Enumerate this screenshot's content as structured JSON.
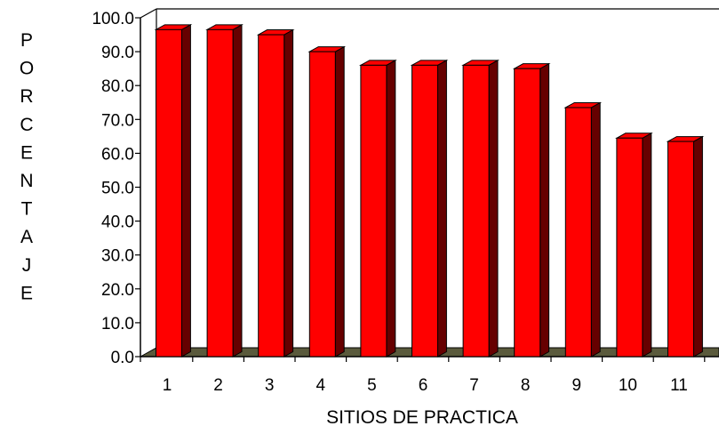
{
  "chart_data": {
    "type": "bar",
    "title": "",
    "xlabel": "SITIOS DE PRACTICA",
    "ylabel": "PORCENTAJE",
    "categories": [
      "1",
      "2",
      "3",
      "4",
      "5",
      "6",
      "7",
      "8",
      "9",
      "10",
      "11"
    ],
    "values": [
      96.5,
      96.5,
      95.0,
      90.0,
      86.0,
      86.0,
      86.0,
      85.0,
      73.5,
      64.5,
      63.5
    ],
    "ylim": [
      0,
      100
    ],
    "yticks": [
      "0.0",
      "10.0",
      "20.0",
      "30.0",
      "40.0",
      "50.0",
      "60.0",
      "70.0",
      "80.0",
      "90.0",
      "100.0"
    ],
    "grid": false,
    "legend": "none",
    "colors": {
      "bar_front": "#ff0000",
      "bar_side": "#660000",
      "bar_top": "#ff0000",
      "floor": "#5a5a3c",
      "axis": "#000000"
    }
  }
}
